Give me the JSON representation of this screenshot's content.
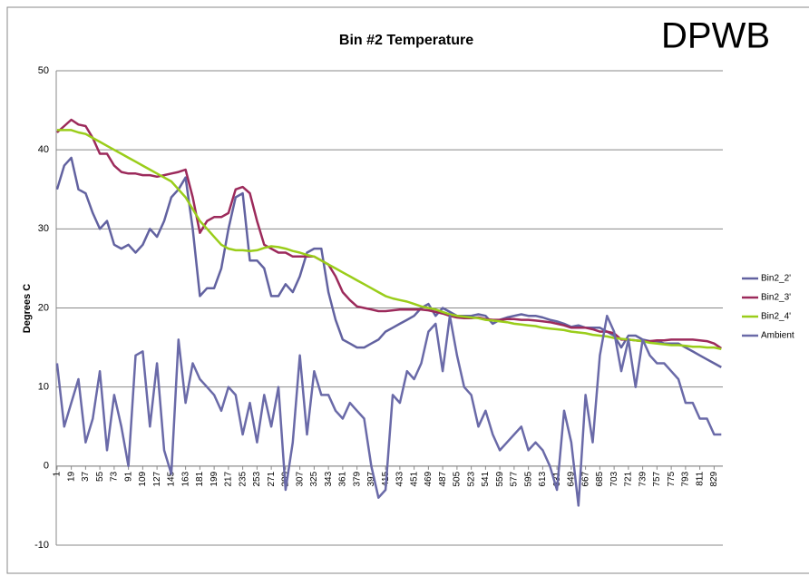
{
  "chart_data": {
    "type": "line",
    "title": "Bin #2 Temperature",
    "annotation": "DPWB",
    "ylabel": "Degrees C",
    "x": [
      1,
      10,
      19,
      28,
      37,
      46,
      55,
      64,
      73,
      82,
      91,
      100,
      109,
      118,
      127,
      136,
      145,
      154,
      163,
      172,
      181,
      190,
      199,
      208,
      217,
      226,
      235,
      244,
      253,
      262,
      271,
      280,
      289,
      298,
      307,
      316,
      325,
      334,
      343,
      352,
      361,
      370,
      379,
      388,
      397,
      406,
      415,
      424,
      433,
      442,
      451,
      460,
      469,
      478,
      487,
      496,
      505,
      514,
      523,
      532,
      541,
      550,
      559,
      568,
      577,
      586,
      595,
      604,
      613,
      622,
      631,
      640,
      649,
      658,
      667,
      676,
      685,
      694,
      703,
      712,
      721,
      730,
      739,
      748,
      757,
      766,
      775,
      784,
      793,
      802,
      811,
      820,
      829,
      838
    ],
    "xlim": [
      0,
      840
    ],
    "xticks": [
      1,
      19,
      37,
      55,
      73,
      91,
      109,
      127,
      145,
      163,
      181,
      199,
      217,
      235,
      253,
      271,
      289,
      307,
      325,
      343,
      361,
      379,
      397,
      415,
      433,
      451,
      469,
      487,
      505,
      523,
      541,
      559,
      577,
      595,
      613,
      631,
      649,
      667,
      685,
      703,
      721,
      739,
      757,
      775,
      793,
      811,
      829
    ],
    "ylim": [
      -10,
      50
    ],
    "yticks": [
      -10,
      0,
      10,
      20,
      30,
      40,
      50
    ],
    "grid": true,
    "legend": "right",
    "series": [
      {
        "name": "Bin2_2'",
        "color": "#6262a0",
        "values": [
          35,
          38,
          39,
          35,
          34.5,
          32,
          30,
          31,
          28,
          27.5,
          28,
          27,
          28,
          30,
          29,
          31,
          34,
          35,
          36.5,
          30,
          21.5,
          22.5,
          22.5,
          25,
          30,
          34,
          34.5,
          26,
          26,
          25,
          21.5,
          21.5,
          23,
          22,
          24,
          27,
          27.5,
          27.5,
          22,
          18.5,
          16,
          15.5,
          15,
          15,
          15.5,
          16,
          17,
          17.5,
          18,
          18.5,
          19,
          20,
          20.5,
          19,
          20,
          19.5,
          19,
          19,
          19,
          19.2,
          19,
          18,
          18.5,
          18.8,
          19,
          19.2,
          19,
          19,
          18.8,
          18.5,
          18.3,
          18,
          17.6,
          17.8,
          17.5,
          17.5,
          17.5,
          17,
          16.5,
          15,
          16.5,
          16.5,
          16,
          15.8,
          15.8,
          15.5,
          15.5,
          15.5,
          15,
          14.5,
          14,
          13.5,
          13,
          12.5
        ]
      },
      {
        "name": "Bin2_3'",
        "color": "#9c2a5b",
        "values": [
          42.2,
          43,
          43.8,
          43.2,
          43,
          41.5,
          39.5,
          39.5,
          38,
          37.2,
          37,
          37,
          36.8,
          36.8,
          36.6,
          36.8,
          37,
          37.2,
          37.5,
          34,
          29.5,
          31,
          31.5,
          31.5,
          32,
          35,
          35.3,
          34.5,
          31,
          28,
          27.5,
          27,
          27,
          26.5,
          26.5,
          26.5,
          26.5,
          26,
          25.5,
          24,
          22,
          21,
          20.2,
          20,
          19.8,
          19.6,
          19.6,
          19.7,
          19.8,
          19.8,
          19.8,
          19.8,
          19.7,
          19.5,
          19.3,
          19,
          18.8,
          18.7,
          18.7,
          18.8,
          18.6,
          18.5,
          18.5,
          18.6,
          18.6,
          18.5,
          18.5,
          18.4,
          18.3,
          18.2,
          18,
          17.8,
          17.5,
          17.5,
          17.5,
          17.3,
          17,
          17,
          16.8,
          16,
          16,
          15.9,
          15.8,
          15.8,
          15.9,
          15.9,
          16,
          16,
          16,
          16,
          15.9,
          15.8,
          15.5,
          14.9
        ]
      },
      {
        "name": "Bin2_4'",
        "color": "#9acd1a",
        "values": [
          42.5,
          42.5,
          42.5,
          42.2,
          42,
          41.5,
          41,
          40.5,
          40,
          39.5,
          39,
          38.5,
          38,
          37.5,
          37,
          36.5,
          36,
          35,
          34,
          32.5,
          31,
          30,
          29,
          28,
          27.5,
          27.3,
          27.3,
          27.2,
          27.3,
          27.6,
          27.8,
          27.7,
          27.5,
          27.2,
          27,
          26.7,
          26.5,
          26,
          25.5,
          25,
          24.5,
          24,
          23.5,
          23,
          22.5,
          22,
          21.5,
          21.2,
          21,
          20.8,
          20.5,
          20.2,
          20,
          19.8,
          19.5,
          19.2,
          19,
          18.9,
          18.8,
          18.7,
          18.5,
          18.4,
          18.3,
          18.2,
          18,
          17.9,
          17.8,
          17.7,
          17.5,
          17.4,
          17.3,
          17.2,
          17,
          16.9,
          16.8,
          16.6,
          16.5,
          16.4,
          16.2,
          16.1,
          16,
          15.9,
          15.8,
          15.6,
          15.5,
          15.4,
          15.3,
          15.3,
          15.2,
          15.1,
          15.1,
          15,
          15,
          14.8
        ]
      },
      {
        "name": "Ambient",
        "color": "#6a6aa8",
        "values": [
          13,
          5,
          8,
          11,
          3,
          6,
          12,
          2,
          9,
          5,
          0,
          14,
          14.5,
          5,
          13,
          2,
          -1,
          16,
          8,
          13,
          11,
          10,
          9,
          7,
          10,
          9,
          4,
          8,
          3,
          9,
          5,
          10,
          -3,
          3,
          14,
          4,
          12,
          9,
          9,
          7,
          6,
          8,
          7,
          6,
          0,
          -4,
          -3,
          9,
          8,
          12,
          11,
          13,
          17,
          18,
          12,
          19,
          14,
          10,
          9,
          5,
          7,
          4,
          2,
          3,
          4,
          5,
          2,
          3,
          2,
          0,
          -3,
          7,
          3,
          -5,
          9,
          3,
          14,
          19,
          17,
          12,
          16,
          10,
          16,
          14,
          13,
          13,
          12,
          11,
          8,
          8,
          6,
          6,
          4,
          4
        ]
      }
    ]
  }
}
